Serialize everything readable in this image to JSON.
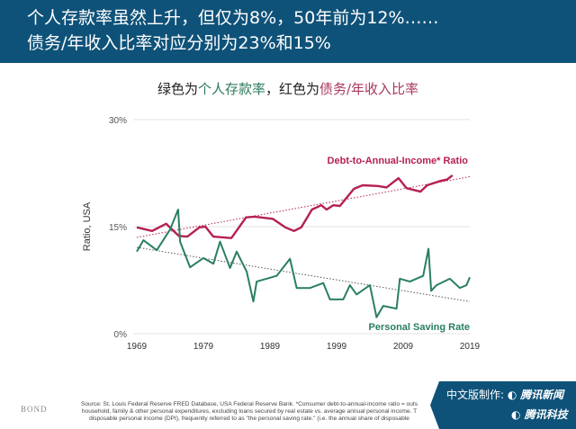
{
  "header": {
    "line1": "个人存款率虽然上升，但仅为8%，50年前为12%……",
    "line2": "债务/年收入比率对应分别为23%和15%"
  },
  "subtitle": {
    "p1": "绿色为",
    "p2": "个人存款率",
    "p3": "，红色为",
    "p4": "债务/年收入比率"
  },
  "chart_data": {
    "type": "line",
    "ylabel": "Ratio, USA",
    "ylim": [
      0,
      30
    ],
    "yticks": [
      "0%",
      "15%",
      "30%"
    ],
    "xlim": [
      1969,
      2019
    ],
    "xticks": [
      "1969",
      "1979",
      "1989",
      "1999",
      "2009",
      "2019"
    ],
    "grid": true,
    "series": [
      {
        "name": "Debt-to-Annual-Income* Ratio",
        "color": "#b5204f",
        "x": [
          1969,
          1971.3,
          1973.4,
          1975.3,
          1976.6,
          1978.4,
          1979.3,
          1980.5,
          1983.2,
          1985.4,
          1986.7,
          1989.4,
          1991.3,
          1992.6,
          1993.7,
          1995.3,
          1996.7,
          1997.5,
          1998.5,
          1999.5,
          2001.6,
          2002.9,
          2005.2,
          2006.5,
          2008.3,
          2009.5,
          2011.6,
          2012.6,
          2014.6,
          2015.6,
          2016.4
        ],
        "y": [
          14.9,
          14.4,
          15.4,
          13.7,
          13.6,
          14.9,
          15.0,
          13.6,
          13.4,
          16.3,
          16.4,
          16.1,
          14.9,
          14.4,
          14.9,
          17.4,
          18.0,
          17.4,
          18.0,
          17.9,
          20.3,
          20.8,
          20.7,
          20.5,
          21.8,
          20.4,
          19.9,
          20.8,
          21.4,
          21.6,
          22.2
        ],
        "trend": [
          13.5,
          22.0
        ]
      },
      {
        "name": "Personal Saving Rate",
        "color": "#2a7f5f",
        "x": [
          1969,
          1970,
          1972,
          1974,
          1975.2,
          1975.5,
          1977,
          1979,
          1980.5,
          1981.5,
          1983,
          1984,
          1985.5,
          1986.5,
          1987,
          1990,
          1992,
          1993,
          1995,
          1997,
          1998,
          2000,
          2001,
          2002,
          2004,
          2005,
          2006,
          2008,
          2008.5,
          2010,
          2012,
          2012.8,
          2013.2,
          2014,
          2016,
          2017.5,
          2018.5,
          2019
        ],
        "y": [
          11.5,
          13.1,
          11.7,
          14.6,
          17.4,
          12.9,
          9.3,
          10.6,
          9.8,
          12.9,
          9.2,
          11.5,
          8.7,
          4.5,
          7.3,
          8.1,
          10.5,
          6.4,
          6.4,
          7.1,
          4.8,
          4.8,
          6.8,
          5.5,
          6.8,
          2.3,
          3.9,
          3.5,
          7.7,
          7.3,
          8.1,
          11.9,
          6.0,
          6.8,
          7.7,
          6.4,
          6.8,
          7.9
        ],
        "trend": [
          12.1,
          4.5
        ]
      }
    ]
  },
  "footer": {
    "brand": "BOND",
    "source1": "Source: St. Louis Federal Reserve FRED Database, USA Federal Reserve Bank. *Consumer debt-to-annual-income ratio = outs",
    "source2": "household, family & other personal expenditures, excluding loans secured by real estate vs. average annual personal income. T",
    "source3": "disposable personal income (DPI), frequently referred to as \"the personal saving rate.\" (i.e. the annual share of disposable"
  },
  "badge": {
    "prefix": "中文版制作:",
    "name1": "腾讯新闻",
    "name2": "腾讯科技"
  }
}
